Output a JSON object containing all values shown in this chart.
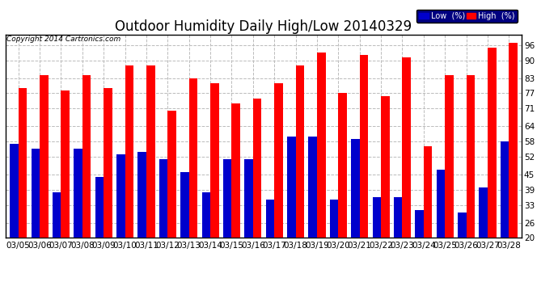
{
  "title": "Outdoor Humidity Daily High/Low 20140329",
  "copyright": "Copyright 2014 Cartronics.com",
  "dates": [
    "03/05",
    "03/06",
    "03/07",
    "03/08",
    "03/09",
    "03/10",
    "03/11",
    "03/12",
    "03/13",
    "03/14",
    "03/15",
    "03/16",
    "03/17",
    "03/18",
    "03/19",
    "03/20",
    "03/21",
    "03/22",
    "03/23",
    "03/24",
    "03/25",
    "03/26",
    "03/27",
    "03/28"
  ],
  "high_values": [
    79,
    84,
    78,
    84,
    79,
    88,
    88,
    70,
    83,
    81,
    73,
    75,
    81,
    88,
    93,
    77,
    92,
    76,
    91,
    56,
    84,
    84,
    95,
    97
  ],
  "low_values": [
    57,
    55,
    38,
    55,
    44,
    53,
    54,
    51,
    46,
    38,
    51,
    51,
    35,
    60,
    60,
    35,
    59,
    36,
    36,
    31,
    47,
    30,
    40,
    58
  ],
  "high_color": "#FF0000",
  "low_color": "#0000CC",
  "bg_color": "#FFFFFF",
  "grid_color": "#BBBBBB",
  "border_color": "#000000",
  "yticks": [
    20,
    26,
    33,
    39,
    45,
    52,
    58,
    64,
    71,
    77,
    83,
    90,
    96
  ],
  "ylim": [
    20,
    100
  ],
  "bar_width": 0.4,
  "title_fontsize": 12,
  "tick_fontsize": 7.5,
  "legend_low_label": "Low  (%)",
  "legend_high_label": "High  (%)",
  "legend_bg": "#000080"
}
